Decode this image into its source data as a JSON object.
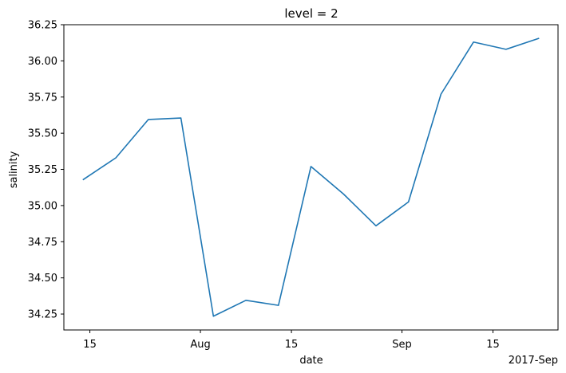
{
  "chart_data": {
    "type": "line",
    "title": "level = 2",
    "xlabel": "date",
    "ylabel": "salinity",
    "x_offset_label": "2017-Sep",
    "grid": false,
    "legend": false,
    "series": [
      {
        "color": "#1f77b4",
        "x": [
          "2017-07-14",
          "2017-07-19",
          "2017-07-24",
          "2017-07-29",
          "2017-08-03",
          "2017-08-08",
          "2017-08-13",
          "2017-08-18",
          "2017-08-23",
          "2017-08-28",
          "2017-09-02",
          "2017-09-07",
          "2017-09-12",
          "2017-09-17",
          "2017-09-22"
        ],
        "y": [
          35.18,
          35.33,
          35.595,
          35.605,
          34.235,
          34.345,
          34.31,
          35.27,
          35.08,
          34.86,
          35.025,
          35.77,
          36.13,
          36.08,
          36.155
        ]
      }
    ],
    "x_ticks": [
      {
        "date": "2017-07-15",
        "label": "15"
      },
      {
        "date": "2017-08-01",
        "label": "Aug"
      },
      {
        "date": "2017-08-15",
        "label": "15"
      },
      {
        "date": "2017-09-01",
        "label": "Sep"
      },
      {
        "date": "2017-09-15",
        "label": "15"
      }
    ],
    "y_ticks": [
      34.25,
      34.5,
      34.75,
      35.0,
      35.25,
      35.5,
      35.75,
      36.0,
      36.25
    ],
    "xlim": [
      "2017-07-11",
      "2017-09-25"
    ],
    "ylim": [
      34.14,
      36.25
    ]
  }
}
